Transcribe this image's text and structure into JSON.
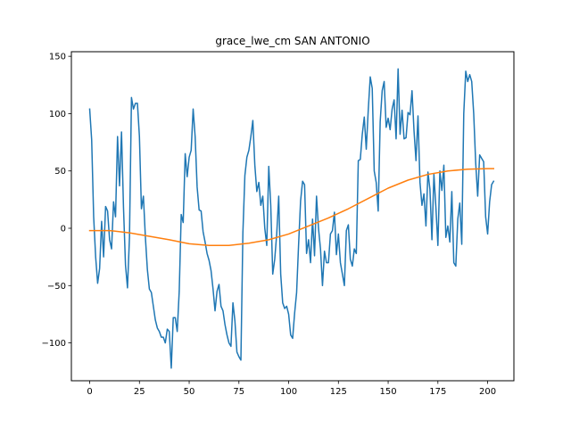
{
  "chart_data": {
    "type": "line",
    "title": "grace_lwe_cm SAN ANTONIO",
    "xlabel": "",
    "ylabel": "",
    "xlim": [
      -9.2,
      213.2
    ],
    "ylim": [
      -133,
      154
    ],
    "x_ticks": [
      0,
      25,
      50,
      75,
      100,
      125,
      150,
      175,
      200
    ],
    "y_ticks": [
      -100,
      -50,
      0,
      50,
      100,
      150
    ],
    "grid": false,
    "legend": "none",
    "series": [
      {
        "color": "#1f77b4",
        "x": [
          0,
          1,
          2,
          3,
          4,
          5,
          6,
          7,
          8,
          9,
          10,
          11,
          12,
          13,
          14,
          15,
          16,
          17,
          18,
          19,
          20,
          21,
          22,
          23,
          24,
          25,
          26,
          27,
          28,
          29,
          30,
          31,
          32,
          33,
          34,
          35,
          36,
          37,
          38,
          39,
          40,
          41,
          42,
          43,
          44,
          45,
          46,
          47,
          48,
          49,
          50,
          51,
          52,
          53,
          54,
          55,
          56,
          57,
          58,
          59,
          60,
          61,
          62,
          63,
          64,
          65,
          66,
          67,
          68,
          69,
          70,
          71,
          72,
          73,
          74,
          75,
          76,
          77,
          78,
          79,
          80,
          81,
          82,
          83,
          84,
          85,
          86,
          87,
          88,
          89,
          90,
          91,
          92,
          93,
          94,
          95,
          96,
          97,
          98,
          99,
          100,
          101,
          102,
          103,
          104,
          105,
          106,
          107,
          108,
          109,
          110,
          111,
          112,
          113,
          114,
          115,
          116,
          117,
          118,
          119,
          120,
          121,
          122,
          123,
          124,
          125,
          126,
          127,
          128,
          129,
          130,
          131,
          132,
          133,
          134,
          135,
          136,
          137,
          138,
          139,
          140,
          141,
          142,
          143,
          144,
          145,
          146,
          147,
          148,
          149,
          150,
          151,
          152,
          153,
          154,
          155,
          156,
          157,
          158,
          159,
          160,
          161,
          162,
          163,
          164,
          165,
          166,
          167,
          168,
          169,
          170,
          171,
          172,
          173,
          174,
          175,
          176,
          177,
          178,
          179,
          180,
          181,
          182,
          183,
          184,
          185,
          186,
          187,
          188,
          189,
          190,
          191,
          192,
          193,
          194,
          195,
          196,
          197,
          198,
          199,
          200,
          201,
          202,
          203
        ],
        "values": [
          104,
          77,
          10,
          -25,
          -48,
          -35,
          6,
          -25,
          19,
          15,
          -10,
          -18,
          23,
          10,
          80,
          37,
          84,
          18,
          -32,
          -52,
          -8,
          114,
          104,
          109,
          109,
          80,
          17,
          28,
          -8,
          -36,
          -53,
          -56,
          -68,
          -80,
          -87,
          -90,
          -95,
          -95,
          -100,
          -88,
          -90,
          -122,
          -78,
          -78,
          -90,
          -55,
          12,
          5,
          65,
          45,
          62,
          68,
          104,
          80,
          36,
          16,
          15,
          -3,
          -12,
          -22,
          -28,
          -37,
          -53,
          -72,
          -55,
          -49,
          -68,
          -72,
          -84,
          -93,
          -100,
          -103,
          -65,
          -81,
          -108,
          -112,
          -115,
          -4,
          46,
          62,
          68,
          80,
          94,
          55,
          32,
          40,
          20,
          28,
          0,
          -15,
          54,
          20,
          -40,
          -27,
          -5,
          28,
          -40,
          -65,
          -70,
          -68,
          -75,
          -93,
          -96,
          -74,
          -56,
          -14,
          24,
          41,
          38,
          -22,
          -10,
          -30,
          8,
          -24,
          28,
          0,
          -18,
          -50,
          -20,
          -30,
          -30,
          -5,
          -2,
          14,
          -23,
          -5,
          -30,
          -40,
          -50,
          -2,
          3,
          -27,
          -33,
          -18,
          -22,
          59,
          60,
          82,
          97,
          69,
          103,
          132,
          122,
          50,
          40,
          15,
          93,
          120,
          128,
          88,
          96,
          86,
          104,
          112,
          78,
          139,
          82,
          103,
          78,
          79,
          101,
          99,
          120,
          85,
          59,
          98,
          40,
          20,
          30,
          2,
          49,
          34,
          -10,
          47,
          18,
          -15,
          50,
          33,
          55,
          -8,
          2,
          -12,
          32,
          -30,
          -33,
          8,
          22,
          -14,
          100,
          137,
          128,
          134,
          128,
          100,
          57,
          28,
          64,
          61,
          58,
          10,
          -5,
          23,
          38,
          41
        ]
      },
      {
        "color": "#ff7f0e",
        "x": [
          0,
          10,
          20,
          30,
          40,
          50,
          60,
          70,
          80,
          90,
          100,
          110,
          120,
          130,
          140,
          150,
          160,
          170,
          180,
          190,
          200,
          203
        ],
        "values": [
          -2,
          -2,
          -4,
          -7,
          -10,
          -13.5,
          -15,
          -15,
          -13,
          -10,
          -5,
          2,
          9,
          17,
          26,
          35,
          42,
          47,
          50,
          51.5,
          52,
          52
        ]
      }
    ]
  }
}
